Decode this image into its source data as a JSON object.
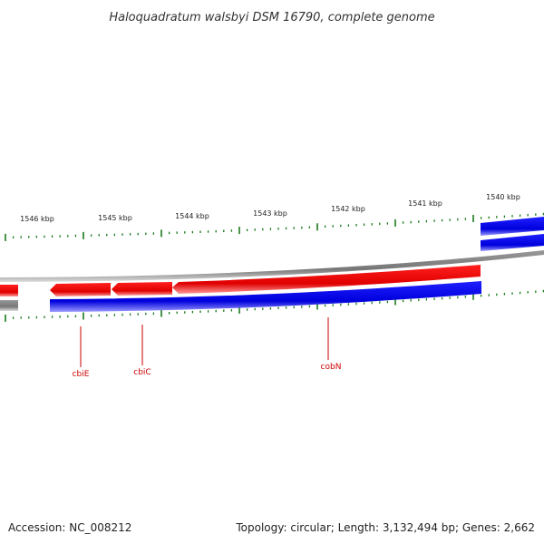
{
  "title": "Haloquadratum walsbyi DSM 16790, complete genome",
  "footer": {
    "accession": "Accession: NC_008212",
    "summary": "Topology: circular; Length: 3,132,494 bp; Genes: 2,662"
  },
  "colors": {
    "forward_strand": "#ff0000",
    "reverse_strand": "#0000ff",
    "backbone": "#888888",
    "ticks": "#1a7a1a",
    "label_line": "#cc0000"
  },
  "ruler": {
    "unit": "kbp",
    "labels": [
      "1546 kbp",
      "1545 kbp",
      "1544 kbp",
      "1543 kbp",
      "1542 kbp",
      "1541 kbp",
      "1540 kbp"
    ]
  },
  "genes": [
    {
      "name": "cbiE",
      "strand": "forward",
      "direction": "left"
    },
    {
      "name": "cbiC",
      "strand": "forward",
      "direction": "left"
    },
    {
      "name": "cobN",
      "strand": "forward",
      "direction": "left"
    }
  ]
}
